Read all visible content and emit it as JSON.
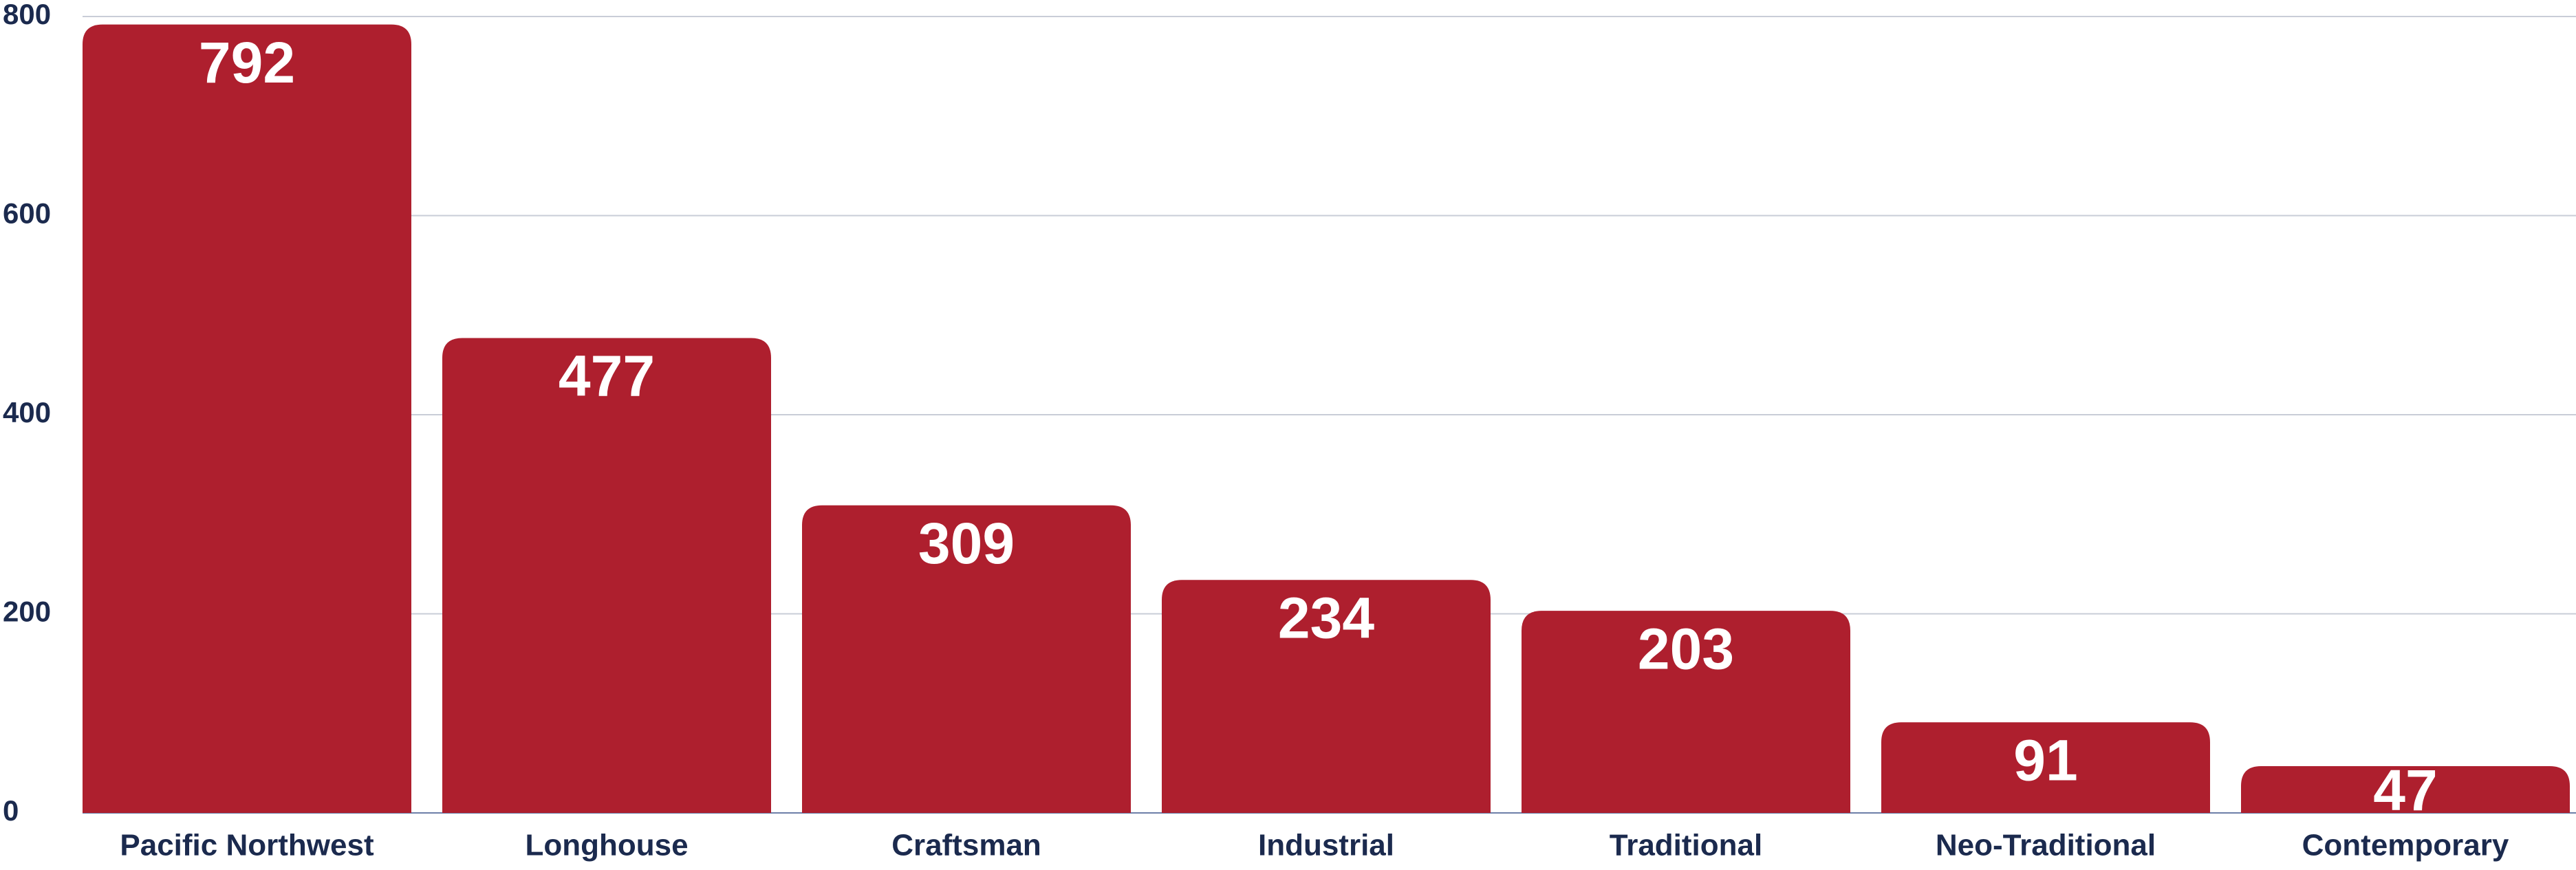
{
  "chart_data": {
    "type": "bar",
    "categories": [
      "Pacific Northwest",
      "Longhouse",
      "Craftsman",
      "Industrial",
      "Traditional",
      "Neo-Traditional",
      "Contemporary"
    ],
    "values": [
      792,
      477,
      309,
      234,
      203,
      91,
      47
    ],
    "color": "#ae1f2e",
    "ylim": [
      0,
      800
    ],
    "yticks": [
      0,
      200,
      400,
      600,
      800
    ],
    "grid": true
  }
}
